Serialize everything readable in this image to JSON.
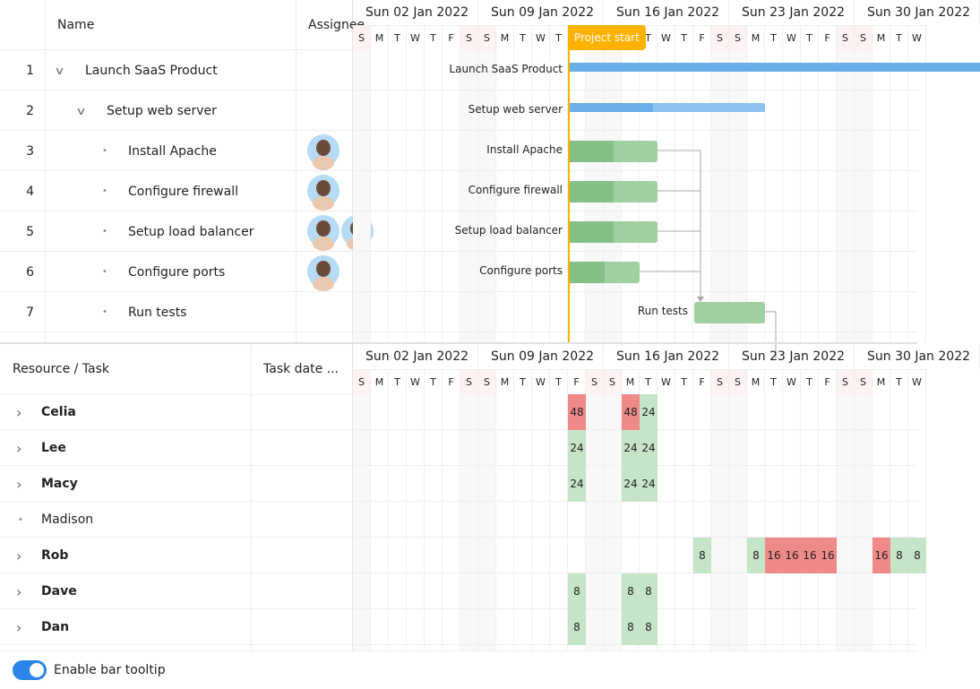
{
  "colors": {
    "accent": "#ffb300",
    "parent_bar": "#6aaeea",
    "task_bar": "#a0d0a2",
    "task_progress": "#84c186",
    "overallocated": "#f08a88",
    "allocated": "#c6e4c7",
    "toggle": "#2a85e8"
  },
  "timeline": {
    "weeks": [
      "Sun 02 Jan 2022",
      "Sun 09 Jan 2022",
      "Sun 16 Jan 2022",
      "Sun 23 Jan 2022",
      "Sun 30 Jan 2022"
    ],
    "day_letters": [
      "S",
      "M",
      "T",
      "W",
      "T",
      "F",
      "S"
    ],
    "project_start": {
      "label": "Project start",
      "date": "2022-01-14"
    }
  },
  "gantt": {
    "columns": {
      "num": "",
      "name": "Name",
      "assignee": "Assignee"
    },
    "rows": [
      {
        "num": "1",
        "name": "Launch SaaS Product",
        "type": "parent",
        "level": 0,
        "start": "2022-01-14",
        "avatars": []
      },
      {
        "num": "2",
        "name": "Setup web server",
        "type": "parent",
        "level": 1,
        "start": "2022-01-14",
        "end": "2022-01-25",
        "progress": 43,
        "avatars": []
      },
      {
        "num": "3",
        "name": "Install Apache",
        "type": "leaf",
        "level": 2,
        "start": "2022-01-14",
        "end": "2022-01-19",
        "progress": 50,
        "avatars": [
          "celia"
        ]
      },
      {
        "num": "4",
        "name": "Configure firewall",
        "type": "leaf",
        "level": 2,
        "start": "2022-01-14",
        "end": "2022-01-19",
        "progress": 50,
        "avatars": [
          "lee"
        ]
      },
      {
        "num": "5",
        "name": "Setup load balancer",
        "type": "leaf",
        "level": 2,
        "start": "2022-01-14",
        "end": "2022-01-19",
        "progress": 50,
        "avatars": [
          "rob",
          "dave"
        ]
      },
      {
        "num": "6",
        "name": "Configure ports",
        "type": "leaf",
        "level": 2,
        "start": "2022-01-14",
        "end": "2022-01-18",
        "progress": 50,
        "avatars": [
          "celia"
        ]
      },
      {
        "num": "7",
        "name": "Run tests",
        "type": "leaf",
        "level": 2,
        "start": "2022-01-21",
        "end": "2022-01-25",
        "progress": 0,
        "avatars": []
      }
    ]
  },
  "resources": {
    "columns": {
      "name": "Resource / Task",
      "date": "Task date ..."
    },
    "rows": [
      {
        "name": "Celia",
        "expandable": true,
        "alloc": [
          [
            "2022-01-14",
            48,
            true
          ],
          [
            "2022-01-17",
            48,
            true
          ],
          [
            "2022-01-18",
            24,
            false
          ]
        ]
      },
      {
        "name": "Lee",
        "expandable": true,
        "alloc": [
          [
            "2022-01-14",
            24,
            false
          ],
          [
            "2022-01-17",
            24,
            false
          ],
          [
            "2022-01-18",
            24,
            false
          ]
        ]
      },
      {
        "name": "Macy",
        "expandable": true,
        "alloc": [
          [
            "2022-01-14",
            24,
            false
          ],
          [
            "2022-01-17",
            24,
            false
          ],
          [
            "2022-01-18",
            24,
            false
          ]
        ]
      },
      {
        "name": "Madison",
        "expandable": false,
        "alloc": []
      },
      {
        "name": "Rob",
        "expandable": true,
        "alloc": [
          [
            "2022-01-21",
            8,
            false
          ],
          [
            "2022-01-24",
            8,
            false
          ],
          [
            "2022-01-25",
            16,
            true
          ],
          [
            "2022-01-26",
            16,
            true
          ],
          [
            "2022-01-27",
            16,
            true
          ],
          [
            "2022-01-28",
            16,
            true
          ],
          [
            "2022-01-31",
            16,
            true
          ],
          [
            "2022-02-01",
            8,
            false
          ],
          [
            "2022-02-02",
            8,
            false
          ]
        ]
      },
      {
        "name": "Dave",
        "expandable": true,
        "alloc": [
          [
            "2022-01-14",
            8,
            false
          ],
          [
            "2022-01-17",
            8,
            false
          ],
          [
            "2022-01-18",
            8,
            false
          ]
        ]
      },
      {
        "name": "Dan",
        "expandable": true,
        "alloc": [
          [
            "2022-01-14",
            8,
            false
          ],
          [
            "2022-01-17",
            8,
            false
          ],
          [
            "2022-01-18",
            8,
            false
          ]
        ]
      }
    ]
  },
  "footer": {
    "toggle_label": "Enable bar tooltip",
    "toggle_on": true
  }
}
